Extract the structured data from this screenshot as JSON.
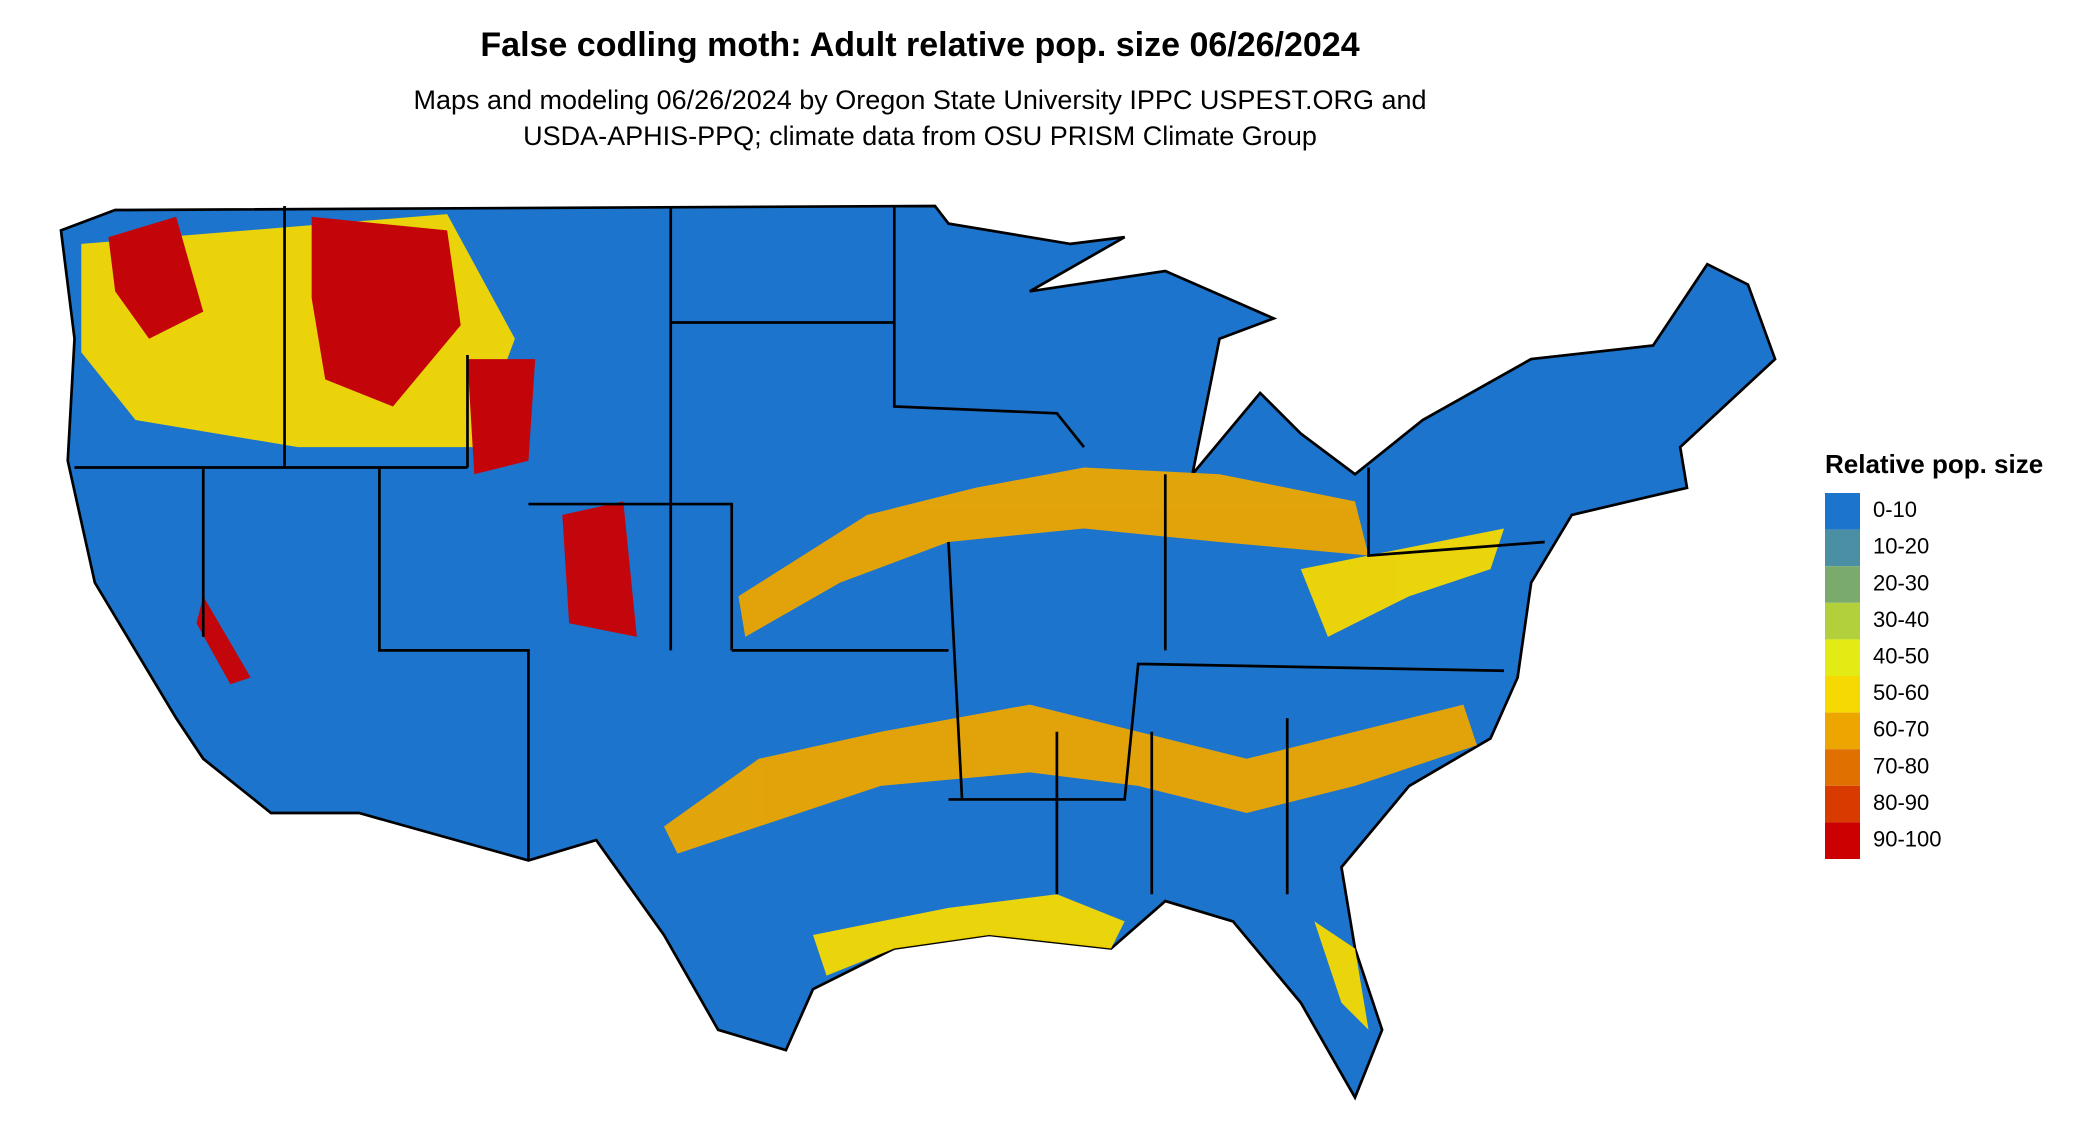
{
  "title": "False codling moth: Adult relative pop. size 06/26/2024",
  "subtitle": [
    "Maps and modeling 06/26/2024 by Oregon State University IPPC USPEST.ORG and",
    "USDA-APHIS-PPQ; climate data from OSU PRISM Climate Group"
  ],
  "legend": {
    "title": "Relative pop. size",
    "items": [
      {
        "label": "0-10",
        "color": "#1c74cc"
      },
      {
        "label": "10-20",
        "color": "#4a8fa4"
      },
      {
        "label": "20-30",
        "color": "#7aab6c"
      },
      {
        "label": "30-40",
        "color": "#b2cf3c"
      },
      {
        "label": "40-50",
        "color": "#e2ec14"
      },
      {
        "label": "50-60",
        "color": "#f6d900"
      },
      {
        "label": "60-70",
        "color": "#eda600"
      },
      {
        "label": "70-80",
        "color": "#e07000"
      },
      {
        "label": "80-90",
        "color": "#d83a00"
      },
      {
        "label": "90-100",
        "color": "#cc0000"
      }
    ]
  }
}
